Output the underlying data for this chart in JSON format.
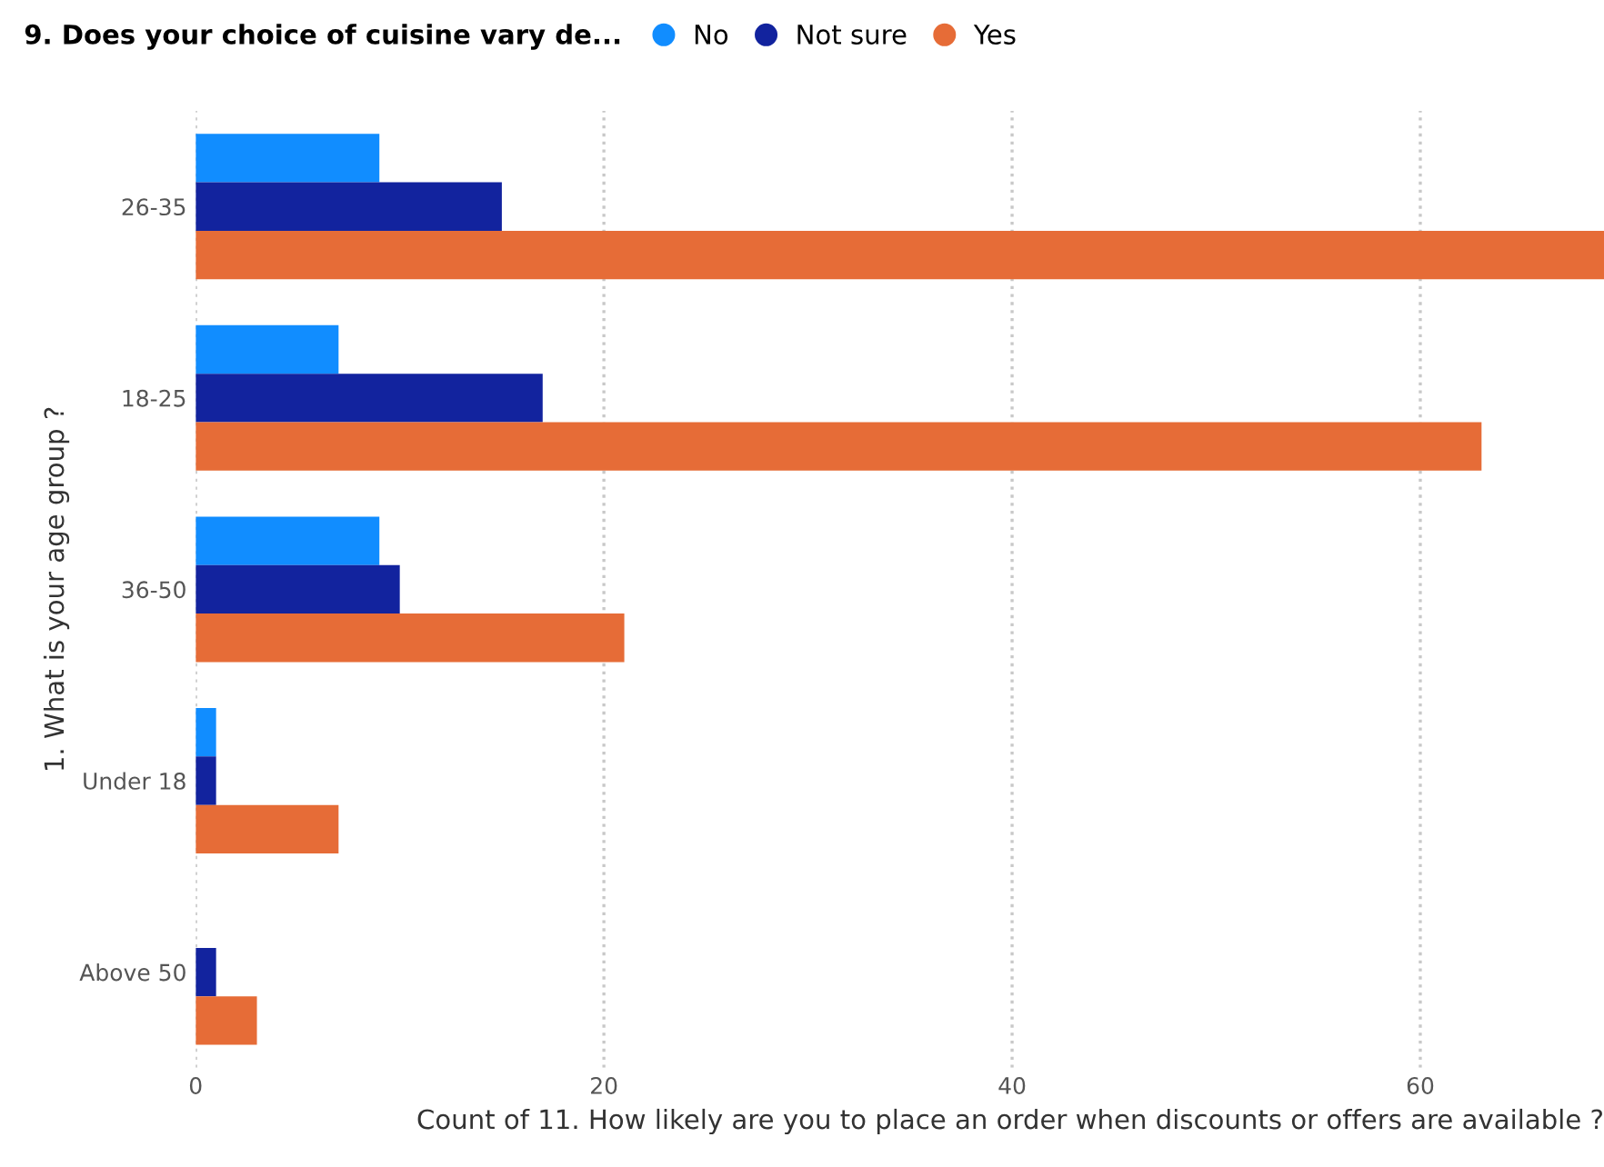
{
  "chart_data": {
    "type": "bar",
    "orientation": "horizontal",
    "legend_title": "9. Does your choice of cuisine vary de...",
    "xlabel": "Count of 11. How likely are you to place an order when discounts or offers are available ?",
    "ylabel": "1. What is your age group ?",
    "categories": [
      "26-35",
      "18-25",
      "36-50",
      "Under 18",
      "Above 50"
    ],
    "series": [
      {
        "name": "No",
        "color": "#118dff",
        "values": [
          9,
          7,
          9,
          1,
          null
        ]
      },
      {
        "name": "Not sure",
        "color": "#12239e",
        "values": [
          15,
          17,
          10,
          1,
          1
        ]
      },
      {
        "name": "Yes",
        "color": "#e66c37",
        "values": [
          69,
          63,
          21,
          7,
          3
        ]
      }
    ],
    "xlim": [
      0,
      69
    ],
    "xticks": [
      0,
      20,
      40,
      60
    ],
    "grid": "x",
    "legend": "top left"
  }
}
